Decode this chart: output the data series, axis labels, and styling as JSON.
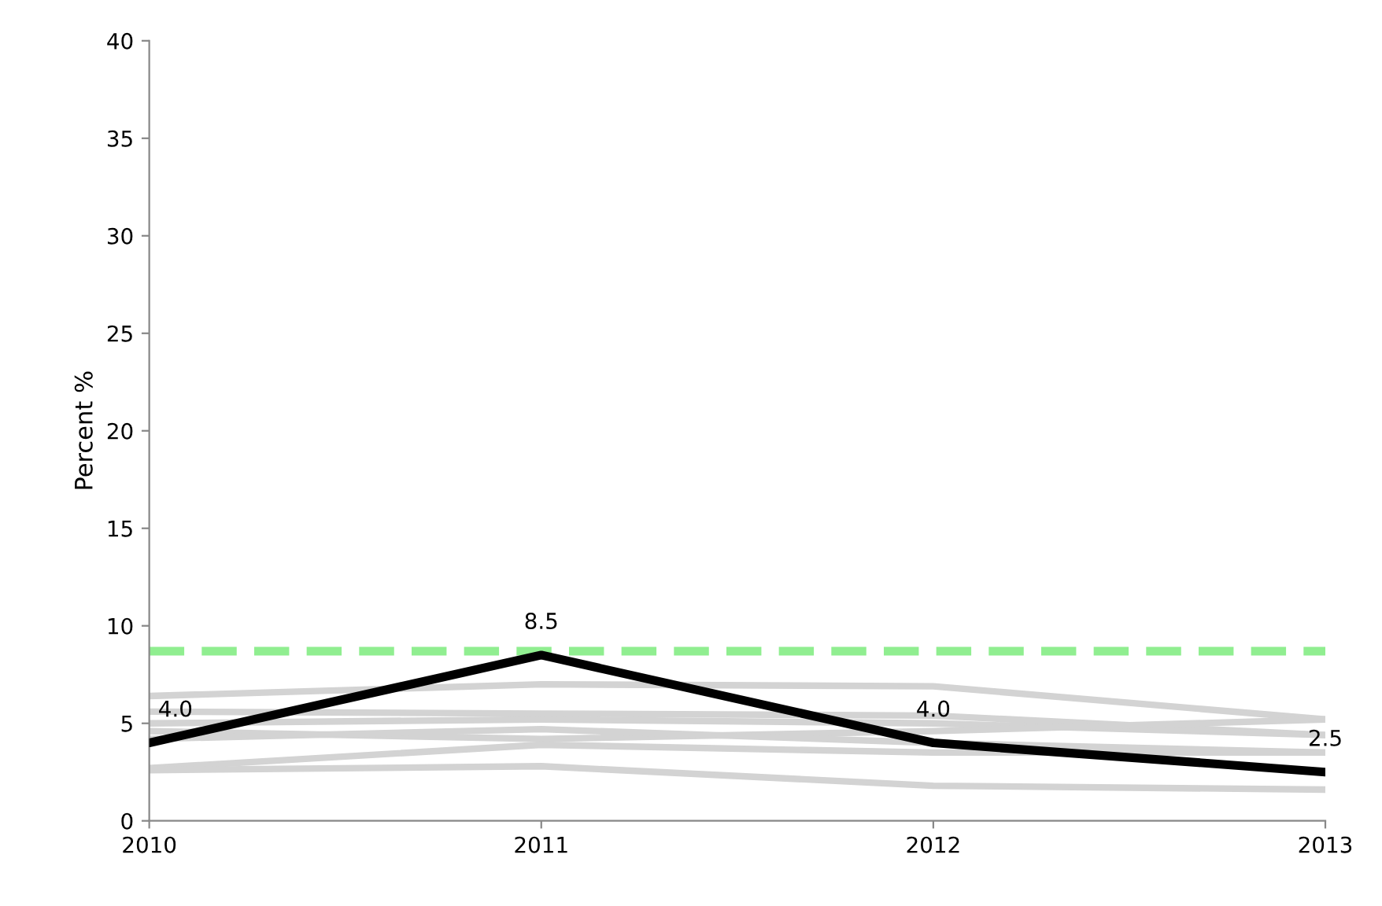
{
  "chart_data": {
    "type": "line",
    "ylabel": "Percent %",
    "x": [
      2010,
      2011,
      2012,
      2013
    ],
    "xlim": [
      2010,
      2013
    ],
    "xticks": [
      2010,
      2011,
      2012,
      2013
    ],
    "ylim": [
      0,
      40
    ],
    "yticks": [
      0,
      5,
      10,
      15,
      20,
      25,
      30,
      35,
      40
    ],
    "grid": false,
    "legend": false,
    "marker": "none",
    "line_style": "solid",
    "series": [
      {
        "color": "#d3d3d3",
        "values": [
          6.4,
          7.0,
          6.9,
          5.2
        ]
      },
      {
        "color": "#d3d3d3",
        "values": [
          5.6,
          5.5,
          5.4,
          4.4
        ]
      },
      {
        "color": "#d3d3d3",
        "values": [
          5.0,
          5.2,
          5.0,
          4.4
        ]
      },
      {
        "color": "#d3d3d3",
        "values": [
          4.6,
          4.2,
          4.6,
          5.2
        ]
      },
      {
        "color": "#d3d3d3",
        "values": [
          4.2,
          4.7,
          4.0,
          3.5
        ]
      },
      {
        "color": "#d3d3d3",
        "values": [
          2.7,
          3.9,
          3.5,
          3.5
        ]
      },
      {
        "color": "#d3d3d3",
        "values": [
          2.6,
          2.8,
          1.8,
          1.6
        ]
      },
      {
        "color": "#000000",
        "values": [
          4.0,
          8.5,
          4.0,
          2.5
        ],
        "value_labels": [
          "4.0",
          "8.5",
          "4.0",
          "2.5"
        ]
      }
    ],
    "ref_lines": [
      {
        "axis": "y",
        "value": 8.7,
        "color": "#90ee90",
        "line_style": "dashed"
      }
    ]
  }
}
